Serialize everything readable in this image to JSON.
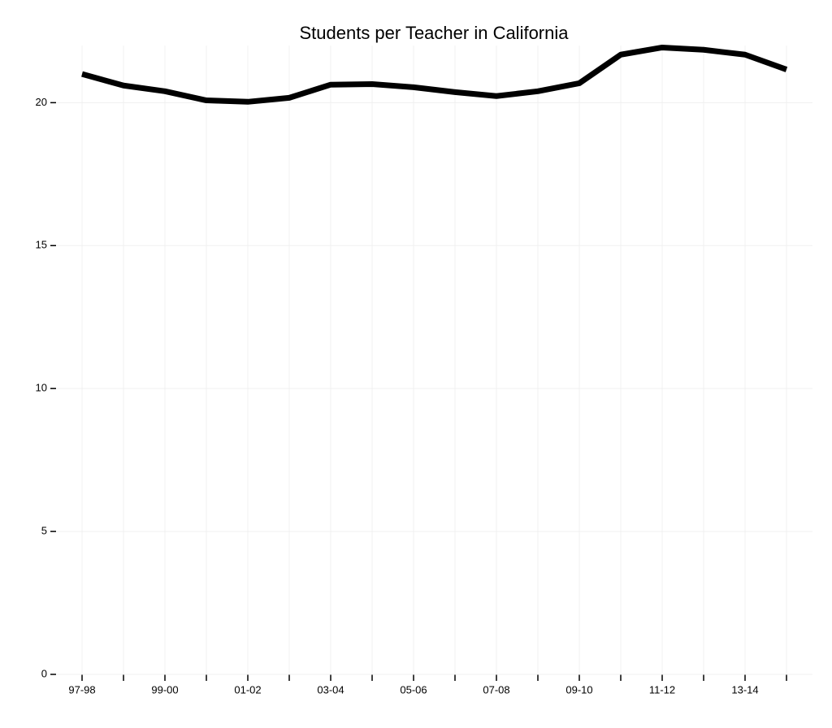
{
  "chart_data": {
    "type": "line",
    "title": "Students per Teacher in California",
    "categories": [
      "97-98",
      null,
      "99-00",
      null,
      "01-02",
      null,
      "03-04",
      null,
      "05-06",
      null,
      "07-08",
      null,
      "09-10",
      null,
      "11-12",
      null,
      "13-14",
      null
    ],
    "series": [
      {
        "color": "#000000",
        "values": [
          21.0,
          20.6,
          20.4,
          20.08,
          20.03,
          20.17,
          20.63,
          20.65,
          20.54,
          20.37,
          20.23,
          20.4,
          20.68,
          21.68,
          21.93,
          21.85,
          21.68,
          21.16
        ]
      }
    ],
    "ylim": [
      0,
      22
    ],
    "yticks": [
      0,
      5,
      10,
      15,
      20
    ],
    "grid": true
  }
}
